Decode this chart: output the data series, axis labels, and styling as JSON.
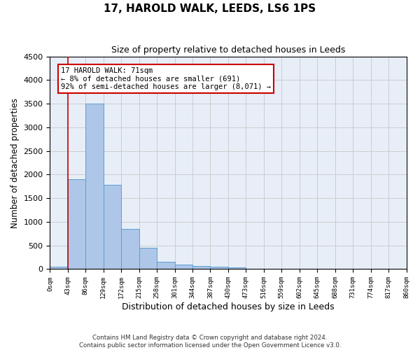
{
  "title": "17, HAROLD WALK, LEEDS, LS6 1PS",
  "subtitle": "Size of property relative to detached houses in Leeds",
  "xlabel": "Distribution of detached houses by size in Leeds",
  "ylabel": "Number of detached properties",
  "bar_values": [
    50,
    1900,
    3500,
    1780,
    850,
    450,
    160,
    100,
    70,
    55,
    40,
    0,
    0,
    0,
    0,
    0,
    0,
    0,
    0,
    0
  ],
  "bin_labels": [
    "0sqm",
    "43sqm",
    "86sqm",
    "129sqm",
    "172sqm",
    "215sqm",
    "258sqm",
    "301sqm",
    "344sqm",
    "387sqm",
    "430sqm",
    "473sqm",
    "516sqm",
    "559sqm",
    "602sqm",
    "645sqm",
    "688sqm",
    "731sqm",
    "774sqm",
    "817sqm",
    "860sqm"
  ],
  "bar_color": "#aec6e8",
  "bar_edge_color": "#5a9fd4",
  "grid_color": "#cccccc",
  "background_color": "#e8eef8",
  "vline_x": 1,
  "vline_color": "#cc0000",
  "annotation_text": "17 HAROLD WALK: 71sqm\n← 8% of detached houses are smaller (691)\n92% of semi-detached houses are larger (8,071) →",
  "annotation_box_color": "#ffffff",
  "annotation_box_edge": "#cc0000",
  "ylim": [
    0,
    4500
  ],
  "footer_line1": "Contains HM Land Registry data © Crown copyright and database right 2024.",
  "footer_line2": "Contains public sector information licensed under the Open Government Licence v3.0."
}
